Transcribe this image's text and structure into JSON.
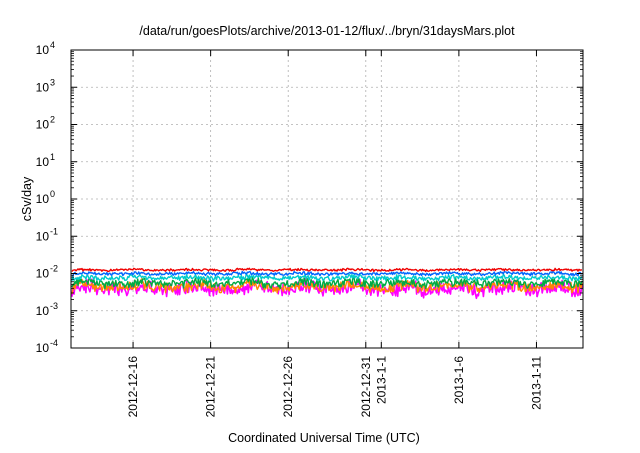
{
  "chart_data": {
    "type": "line",
    "title": "/data/run/goesPlots/archive/2013-01-12/flux/../bryn/31daysMars.plot",
    "xlabel": "Coordinated Universal Time (UTC)",
    "ylabel": "cSv/day",
    "yscale": "log",
    "ylim": [
      0.0001,
      10000
    ],
    "xlim": [
      "2012-12-12",
      "2013-01-14"
    ],
    "grid": true,
    "legend": "none",
    "y_ticks": [
      {
        "exp": "-4",
        "value": 0.0001
      },
      {
        "exp": "-3",
        "value": 0.001
      },
      {
        "exp": "-2",
        "value": 0.01
      },
      {
        "exp": "-1",
        "value": 0.1
      },
      {
        "exp": "0",
        "value": 1
      },
      {
        "exp": "1",
        "value": 10
      },
      {
        "exp": "2",
        "value": 100
      },
      {
        "exp": "3",
        "value": 1000
      },
      {
        "exp": "4",
        "value": 10000
      }
    ],
    "x_ticks": [
      {
        "date": "2012-12-16",
        "label": "2012-12-16"
      },
      {
        "date": "2012-12-21",
        "label": "2012-12-21"
      },
      {
        "date": "2012-12-26",
        "label": "2012-12-26"
      },
      {
        "date": "2012-12-31",
        "label": "2012-12-31"
      },
      {
        "date": "2013-01-01",
        "label": "2013-1-1"
      },
      {
        "date": "2013-01-06",
        "label": "2013-1-6"
      },
      {
        "date": "2013-01-11",
        "label": "2013-1-11"
      }
    ],
    "series": [
      {
        "color": "#ff00ff",
        "values": [
          0.0036,
          0.0041,
          0.0047,
          0.0048,
          0.0038,
          0.0036,
          0.0042,
          0.0039,
          0.0034,
          0.0035,
          0.0041,
          0.0045,
          0.0038,
          0.0032,
          0.0035,
          0.0039,
          0.0037,
          0.0041,
          0.0047,
          0.0044,
          0.0036,
          0.0035,
          0.004,
          0.0036,
          0.0035,
          0.0038,
          0.0046,
          0.0044,
          0.0038,
          0.0039,
          0.0038,
          0.0035,
          0.0037,
          0.0047,
          0.0049,
          0.0042,
          0.0037,
          0.0036,
          0.0034,
          0.0039,
          0.0043,
          0.0045,
          0.004,
          0.0035,
          0.0038,
          0.0041,
          0.0039,
          0.0038,
          0.0045,
          0.0046,
          0.0035,
          0.0034,
          0.0037,
          0.0039,
          0.0041,
          0.0045,
          0.0044,
          0.0038,
          0.0032,
          0.0035,
          0.0041,
          0.0042,
          0.0041,
          0.0046,
          0.0043,
          0.0036,
          0.0033,
          0.0035,
          0.004,
          0.0043,
          0.0045,
          0.0043,
          0.0034,
          0.0036
        ]
      },
      {
        "color": "#ff8800",
        "values": [
          0.0041,
          0.0052,
          0.0053,
          0.0045,
          0.0043,
          0.0044,
          0.0047,
          0.0042,
          0.0043,
          0.0045,
          0.0053,
          0.0048,
          0.0041,
          0.0042,
          0.0045,
          0.0043,
          0.0042,
          0.0045,
          0.0052,
          0.0051,
          0.0042,
          0.004,
          0.0042,
          0.0043,
          0.0043,
          0.0049,
          0.0051,
          0.0046,
          0.0043,
          0.0041,
          0.004,
          0.0041,
          0.0046,
          0.0054,
          0.0049,
          0.0041,
          0.004,
          0.0043,
          0.0044,
          0.0046,
          0.0049,
          0.0048,
          0.0041,
          0.0039,
          0.0043,
          0.0044,
          0.0044,
          0.0051,
          0.0053,
          0.0047,
          0.0041,
          0.0042,
          0.0044,
          0.0045,
          0.0048,
          0.005,
          0.0044,
          0.0042,
          0.004,
          0.0042,
          0.0042,
          0.0046,
          0.005,
          0.0052,
          0.0045,
          0.0041,
          0.0041,
          0.004,
          0.0044,
          0.0052,
          0.0051,
          0.0044,
          0.0041,
          0.0043
        ]
      },
      {
        "color": "#00aa44",
        "values": [
          0.0052,
          0.0058,
          0.0061,
          0.0058,
          0.0052,
          0.0051,
          0.0055,
          0.0054,
          0.0052,
          0.0057,
          0.0062,
          0.0058,
          0.0052,
          0.0053,
          0.0055,
          0.0054,
          0.0054,
          0.0059,
          0.0064,
          0.0057,
          0.0053,
          0.0052,
          0.0054,
          0.0054,
          0.0056,
          0.0058,
          0.0061,
          0.0056,
          0.0051,
          0.0053,
          0.0052,
          0.0053,
          0.0058,
          0.0063,
          0.006,
          0.0055,
          0.0053,
          0.0052,
          0.0055,
          0.0059,
          0.0061,
          0.0058,
          0.0052,
          0.0051,
          0.0052,
          0.0055,
          0.0058,
          0.006,
          0.0061,
          0.0056,
          0.0052,
          0.0051,
          0.0055,
          0.0057,
          0.0058,
          0.006,
          0.0056,
          0.0051,
          0.0052,
          0.0055,
          0.0056,
          0.006,
          0.0061,
          0.0057,
          0.0054,
          0.0052,
          0.0052,
          0.0053,
          0.0057,
          0.0062,
          0.0059,
          0.0055,
          0.0053,
          0.0052
        ]
      },
      {
        "color": "#00cccc",
        "values": [
          0.0073,
          0.0079,
          0.0081,
          0.0079,
          0.0074,
          0.0075,
          0.0075,
          0.0077,
          0.0077,
          0.008,
          0.0083,
          0.0076,
          0.0073,
          0.0075,
          0.0076,
          0.0076,
          0.0078,
          0.0081,
          0.0082,
          0.0078,
          0.0073,
          0.0074,
          0.0075,
          0.0077,
          0.0077,
          0.0081,
          0.0082,
          0.0077,
          0.0073,
          0.0074,
          0.0075,
          0.0076,
          0.0079,
          0.0084,
          0.0079,
          0.0074,
          0.0074,
          0.0074,
          0.0075,
          0.0078,
          0.0082,
          0.008,
          0.0077,
          0.0075,
          0.0074,
          0.0075,
          0.0078,
          0.0081,
          0.0081,
          0.0078,
          0.0074,
          0.0073,
          0.0074,
          0.0077,
          0.008,
          0.0082,
          0.0078,
          0.0075,
          0.0074,
          0.0075,
          0.0077,
          0.0081,
          0.0083,
          0.0079,
          0.0074,
          0.0073,
          0.0074,
          0.0075,
          0.0079,
          0.0082,
          0.008,
          0.0075,
          0.0073,
          0.0074
        ]
      },
      {
        "color": "#0066ff",
        "values": [
          0.0095,
          0.01,
          0.0104,
          0.01,
          0.0097,
          0.0096,
          0.0099,
          0.0098,
          0.0098,
          0.0103,
          0.0102,
          0.0099,
          0.0097,
          0.0097,
          0.0098,
          0.0099,
          0.01,
          0.0104,
          0.0103,
          0.0098,
          0.0097,
          0.0096,
          0.0097,
          0.0099,
          0.0103,
          0.0104,
          0.0101,
          0.0097,
          0.0096,
          0.0097,
          0.0096,
          0.0101,
          0.0104,
          0.0102,
          0.01,
          0.0097,
          0.0096,
          0.0098,
          0.0098,
          0.0103,
          0.0103,
          0.0101,
          0.0097,
          0.0096,
          0.0097,
          0.0099,
          0.0101,
          0.0104,
          0.0103,
          0.0098,
          0.0095,
          0.0096,
          0.0098,
          0.0101,
          0.0104,
          0.0102,
          0.0098,
          0.0096,
          0.0097,
          0.0099,
          0.0099,
          0.0104,
          0.0103,
          0.0101,
          0.0098,
          0.0096,
          0.0097,
          0.0098,
          0.0101,
          0.0105,
          0.0102,
          0.0098,
          0.0096,
          0.0097
        ]
      },
      {
        "color": "#ee0000",
        "values": [
          0.0122,
          0.0127,
          0.0126,
          0.0124,
          0.0123,
          0.0121,
          0.0123,
          0.0124,
          0.0126,
          0.013,
          0.0128,
          0.0124,
          0.0122,
          0.0123,
          0.0123,
          0.0126,
          0.0128,
          0.013,
          0.0127,
          0.0124,
          0.0123,
          0.0121,
          0.0123,
          0.0125,
          0.0129,
          0.0129,
          0.0126,
          0.0123,
          0.0122,
          0.0122,
          0.0124,
          0.0126,
          0.0128,
          0.0128,
          0.0125,
          0.0123,
          0.0122,
          0.0122,
          0.0124,
          0.0127,
          0.0129,
          0.0128,
          0.0123,
          0.0122,
          0.0121,
          0.0124,
          0.0127,
          0.0128,
          0.0128,
          0.0125,
          0.0122,
          0.0121,
          0.0123,
          0.0126,
          0.0128,
          0.0128,
          0.0125,
          0.0123,
          0.0122,
          0.0123,
          0.0125,
          0.0128,
          0.0128,
          0.0125,
          0.0123,
          0.0121,
          0.0122,
          0.0124,
          0.0126,
          0.0128,
          0.0127,
          0.0125,
          0.0122,
          0.0122
        ]
      }
    ]
  }
}
